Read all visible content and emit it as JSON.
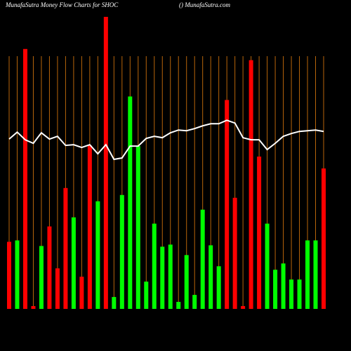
{
  "chart_data": {
    "type": "bar",
    "title": "MunafaSutra  Money Flow  Charts for SHOC",
    "subtitle": "() MunafaSutra.com",
    "categories": [
      null,
      null,
      null,
      null,
      null,
      null,
      null,
      null,
      null,
      null,
      null,
      null,
      null,
      null,
      null,
      null,
      null,
      null,
      null,
      null,
      null,
      null,
      null,
      null,
      null,
      null,
      null,
      null,
      null,
      null,
      null,
      null,
      null,
      null,
      null,
      null,
      null,
      null,
      null,
      null
    ],
    "ylim": [
      0,
      420
    ],
    "grid": true,
    "grid_color": "#b8650a",
    "series": [
      {
        "type": "bar",
        "values": [
          96,
          98,
          372,
          4,
          90,
          118,
          58,
          173,
          131,
          46,
          234,
          154,
          418,
          17,
          163,
          304,
          233,
          39,
          122,
          89,
          92,
          10,
          77,
          20,
          142,
          91,
          61,
          299,
          159,
          4,
          356,
          218,
          122,
          56,
          65,
          42,
          42,
          98,
          98,
          201
        ],
        "colors": [
          "#ff0000",
          "#00ff00",
          "#ff0000",
          "#ff0000",
          "#00ff00",
          "#ff0000",
          "#ff0000",
          "#ff0000",
          "#00ff00",
          "#ff0000",
          "#ff0000",
          "#00ff00",
          "#ff0000",
          "#00ff00",
          "#00ff00",
          "#00ff00",
          "#00ff00",
          "#00ff00",
          "#00ff00",
          "#00ff00",
          "#00ff00",
          "#00ff00",
          "#00ff00",
          "#00ff00",
          "#00ff00",
          "#00ff00",
          "#00ff00",
          "#ff0000",
          "#ff0000",
          "#ff0000",
          "#ff0000",
          "#ff0000",
          "#00ff00",
          "#00ff00",
          "#00ff00",
          "#00ff00",
          "#00ff00",
          "#00ff00",
          "#00ff00",
          "#ff0000"
        ]
      },
      {
        "type": "line",
        "color": "#ffffff",
        "values": [
          243,
          253,
          242,
          237,
          252,
          243,
          247,
          234,
          235,
          231,
          235,
          222,
          235,
          214,
          216,
          233,
          233,
          244,
          247,
          245,
          252,
          256,
          255,
          258,
          262,
          265,
          265,
          270,
          266,
          245,
          242,
          242,
          228,
          237,
          247,
          251,
          254,
          255,
          256,
          254
        ]
      }
    ]
  }
}
